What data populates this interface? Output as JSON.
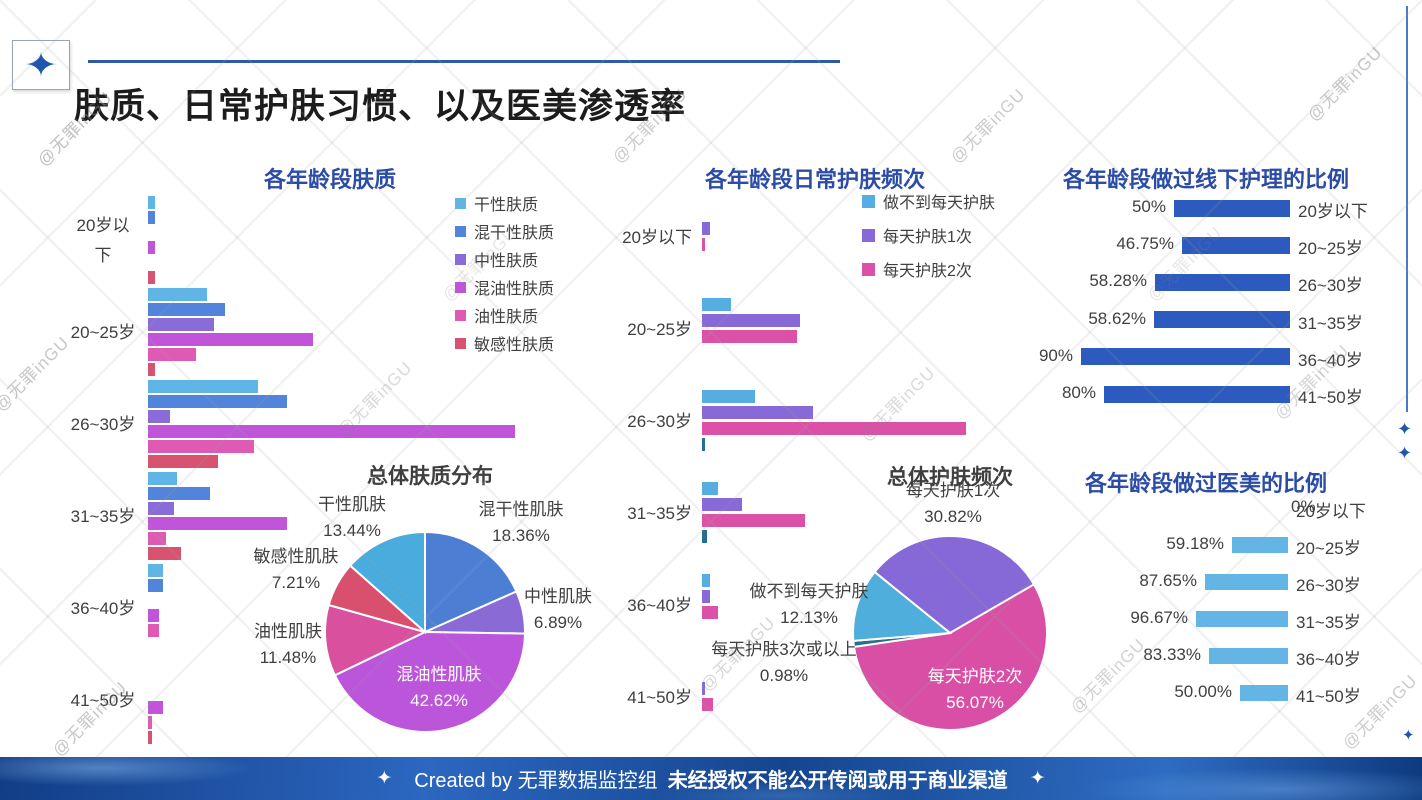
{
  "header": {
    "title": "肤质、日常护肤习惯、以及医美渗透率"
  },
  "glyphs": {
    "sparkle": "✦"
  },
  "watermark": {
    "text": "@无罪inGU"
  },
  "footer": {
    "created_by": "Created by 无罪数据监控组",
    "notice": "未经授权不能公开传阅或用于商业渠道"
  },
  "chart_data": [
    {
      "id": "skin-type-by-age",
      "type": "bar",
      "orientation": "horizontal",
      "title": "各年龄段肤质",
      "value_axis": "unlabeled (relative units, longest bar = 100)",
      "legend_position": "right",
      "categories": [
        "20岁以下",
        "20~25岁",
        "26~30岁",
        "31~35岁",
        "36~40岁",
        "41~50岁"
      ],
      "series": [
        {
          "name": "干性肤质",
          "color": "#5FB6E6",
          "values": [
            2,
            16,
            30,
            8,
            4,
            0
          ]
        },
        {
          "name": "混干性肤质",
          "color": "#5284DC",
          "values": [
            2,
            21,
            38,
            17,
            4,
            0
          ]
        },
        {
          "name": "中性肤质",
          "color": "#8A6CD8",
          "values": [
            0,
            18,
            6,
            7,
            0,
            0
          ]
        },
        {
          "name": "混油性肤质",
          "color": "#C055DA",
          "values": [
            2,
            45,
            100,
            38,
            3,
            4
          ]
        },
        {
          "name": "油性肤质",
          "color": "#DF5AB5",
          "values": [
            0,
            13,
            29,
            5,
            3,
            1
          ]
        },
        {
          "name": "敏感性肤质",
          "color": "#D8536F",
          "values": [
            2,
            2,
            19,
            9,
            0,
            1
          ]
        }
      ]
    },
    {
      "id": "daily-skincare-frequency-by-age",
      "type": "bar",
      "orientation": "horizontal",
      "title": "各年龄段日常护肤频次",
      "value_axis": "unlabeled (relative units, longest bar = 100)",
      "legend_position": "right",
      "categories": [
        "20岁以下",
        "20~25岁",
        "26~30岁",
        "31~35岁",
        "36~40岁",
        "41~50岁"
      ],
      "series": [
        {
          "name": "做不到每天护肤",
          "color": "#56AEE0",
          "values": [
            0,
            11,
            20,
            6,
            3,
            0
          ],
          "in_legend": true
        },
        {
          "name": "每天护肤1次",
          "color": "#8769D7",
          "values": [
            3,
            37,
            42,
            15,
            3,
            1
          ],
          "in_legend": true
        },
        {
          "name": "每天护肤2次",
          "color": "#DB51A8",
          "values": [
            1,
            36,
            100,
            39,
            6,
            4
          ],
          "in_legend": true
        },
        {
          "name": "每天护肤3次或以上",
          "color": "#26708E",
          "values": [
            0,
            0,
            1,
            2,
            0,
            0
          ],
          "in_legend": false
        }
      ]
    },
    {
      "id": "overall-skin-type",
      "type": "pie",
      "title": "总体肤质分布",
      "start_angle_deg": 0,
      "slices": [
        {
          "name": "混干性肌肤",
          "value": 18.36,
          "label": "18.36%",
          "color": "#4C7ED4",
          "label_inside": false
        },
        {
          "name": "中性肌肤",
          "value": 6.89,
          "label": "6.89%",
          "color": "#8A6BD6",
          "label_inside": false
        },
        {
          "name": "混油性肌肤",
          "value": 42.62,
          "label": "42.62%",
          "color": "#BB55D9",
          "label_inside": true
        },
        {
          "name": "油性肌肤",
          "value": 11.48,
          "label": "11.48%",
          "color": "#D8509E",
          "label_inside": false
        },
        {
          "name": "敏感性肌肤",
          "value": 7.21,
          "label": "7.21%",
          "color": "#D8506E",
          "label_inside": false
        },
        {
          "name": "干性肌肤",
          "value": 13.44,
          "label": "13.44%",
          "color": "#49ACDC",
          "label_inside": false
        }
      ]
    },
    {
      "id": "offline-care-by-age",
      "type": "bar",
      "orientation": "horizontal",
      "title": "各年龄段做过线下护理的比例",
      "bar_color": "#2D5ABE",
      "xlim": [
        0,
        100
      ],
      "categories": [
        "20岁以下",
        "20~25岁",
        "26~30岁",
        "31~35岁",
        "36~40岁",
        "41~50岁"
      ],
      "values": [
        50,
        46.75,
        58.28,
        58.62,
        90,
        80
      ],
      "labels": [
        "50%",
        "46.75%",
        "58.28%",
        "58.62%",
        "90%",
        "80%"
      ]
    },
    {
      "id": "overall-skincare-frequency",
      "type": "pie",
      "title": "总体护肤频次",
      "start_angle_deg": 309,
      "slices": [
        {
          "name": "每天护肤1次",
          "value": 30.82,
          "label": "30.82%",
          "color": "#8668D6",
          "label_inside": false
        },
        {
          "name": "每天护肤2次",
          "value": 56.07,
          "label": "56.07%",
          "color": "#D94FA5",
          "label_inside": true
        },
        {
          "name": "每天护肤3次或以上",
          "value": 0.98,
          "label": "0.98%",
          "color": "#26708E",
          "label_inside": false
        },
        {
          "name": "做不到每天护肤",
          "value": 12.13,
          "label": "12.13%",
          "color": "#4FAEDC",
          "label_inside": false
        }
      ]
    },
    {
      "id": "medical-beauty-by-age",
      "type": "bar",
      "orientation": "horizontal",
      "title": "各年龄段做过医美的比例",
      "bar_color": "#63B5E6",
      "xlim": [
        0,
        100
      ],
      "categories": [
        "20岁以下",
        "20~25岁",
        "26~30岁",
        "31~35岁",
        "36~40岁",
        "41~50岁"
      ],
      "values": [
        0,
        59.18,
        87.65,
        96.67,
        83.33,
        50.0
      ],
      "labels": [
        "0%",
        "59.18%",
        "87.65%",
        "96.67%",
        "83.33%",
        "50.00%"
      ]
    }
  ]
}
